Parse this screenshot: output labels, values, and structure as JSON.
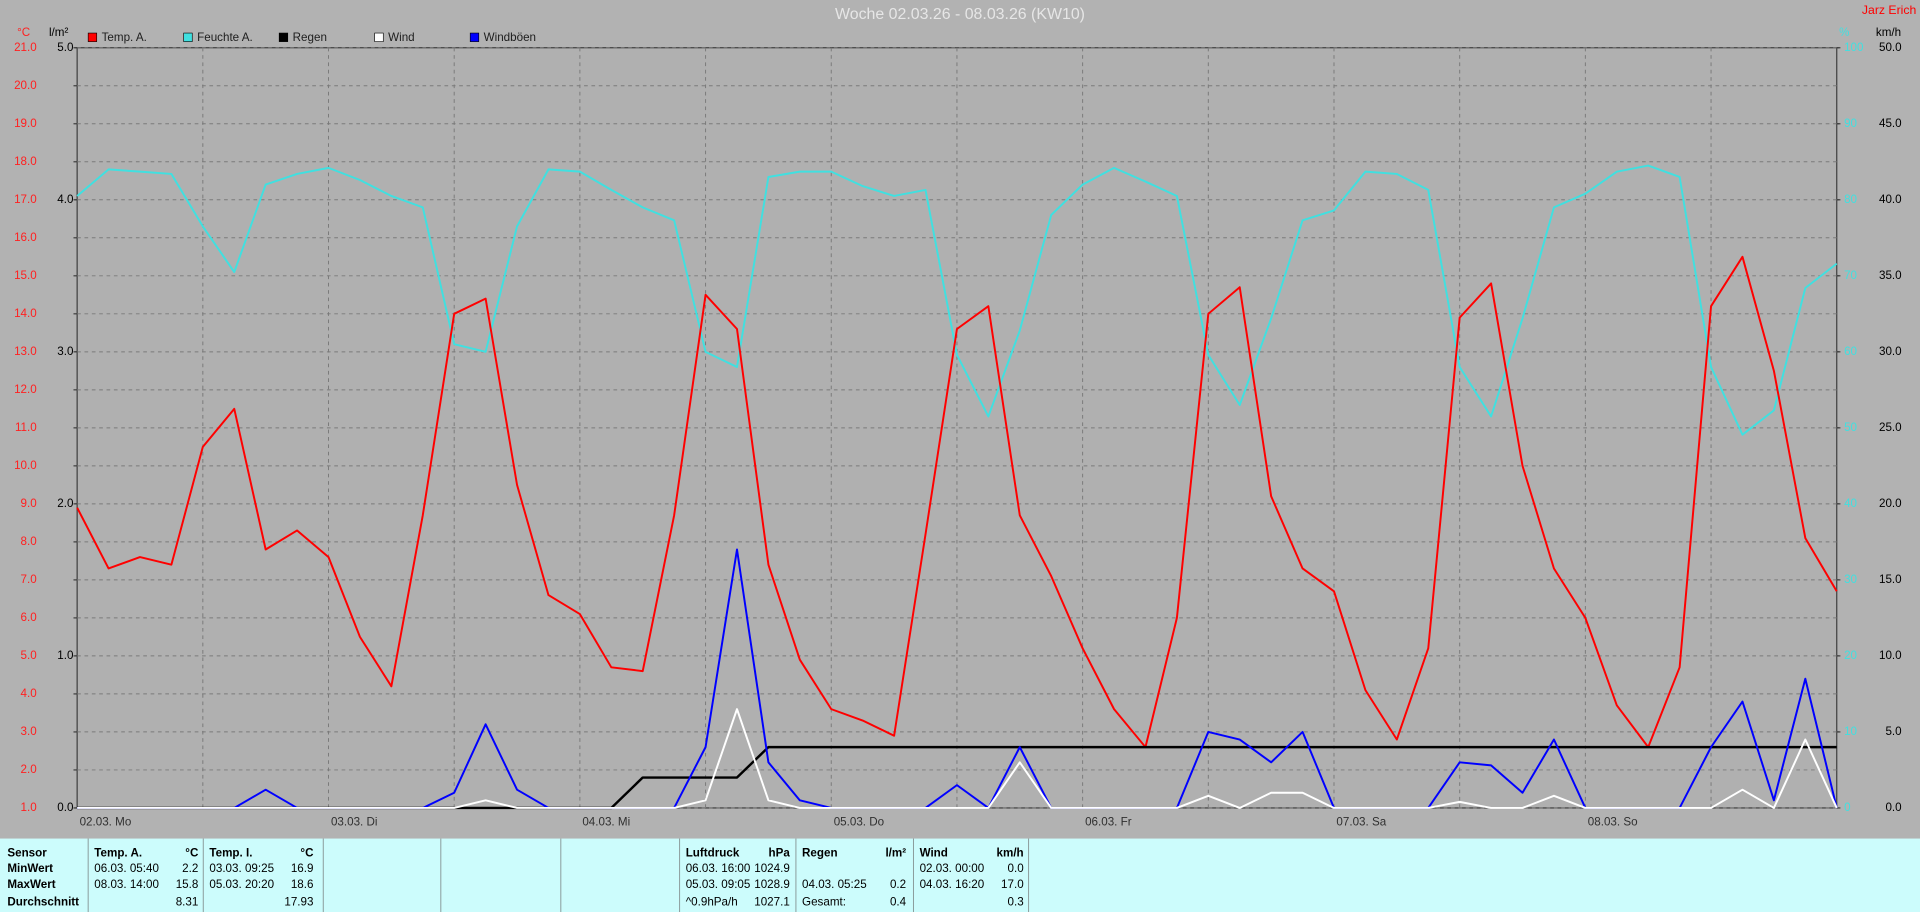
{
  "chart_data": {
    "type": "line",
    "title": "Woche 02.03.26 - 08.03.26 (KW10)",
    "author": "Jarz Erich",
    "ylabel": "°C",
    "y2label": "l/m²",
    "y3label": "%",
    "y4label": "km/h",
    "grid": true,
    "legend": "top-left",
    "categories": [
      "02.03. Mo",
      null,
      null,
      null,
      null,
      null,
      null,
      null,
      "03.03. Di",
      null,
      null,
      null,
      null,
      null,
      null,
      null,
      "04.03. Mi",
      null,
      null,
      null,
      null,
      null,
      null,
      null,
      "05.03. Do",
      null,
      null,
      null,
      null,
      null,
      null,
      null,
      "06.03. Fr",
      null,
      null,
      null,
      null,
      null,
      null,
      null,
      "07.03. Sa",
      null,
      null,
      null,
      null,
      null,
      null,
      null,
      "08.03. So",
      null,
      null,
      null,
      null,
      null,
      null,
      null,
      null
    ],
    "ylim": [
      1,
      21
    ],
    "yticks": [
      {
        "value": 1,
        "label": "1.0"
      },
      {
        "value": 2,
        "label": "2.0"
      },
      {
        "value": 3,
        "label": "3.0"
      },
      {
        "value": 4,
        "label": "4.0"
      },
      {
        "value": 5,
        "label": "5.0"
      },
      {
        "value": 6,
        "label": "6.0"
      },
      {
        "value": 7,
        "label": "7.0"
      },
      {
        "value": 8,
        "label": "8.0"
      },
      {
        "value": 9,
        "label": "9.0"
      },
      {
        "value": 10,
        "label": "10.0"
      },
      {
        "value": 11,
        "label": "11.0"
      },
      {
        "value": 12,
        "label": "12.0"
      },
      {
        "value": 13,
        "label": "13.0"
      },
      {
        "value": 14,
        "label": "14.0"
      },
      {
        "value": 15,
        "label": "15.0"
      },
      {
        "value": 16,
        "label": "16.0"
      },
      {
        "value": 17,
        "label": "17.0"
      },
      {
        "value": 18,
        "label": "18.0"
      },
      {
        "value": 19,
        "label": "19.0"
      },
      {
        "value": 20,
        "label": "20.0"
      },
      {
        "value": 21,
        "label": "21.0"
      }
    ],
    "y2lim": [
      0,
      5
    ],
    "y2ticks": [
      {
        "value": 0,
        "label": "0.0"
      },
      {
        "value": 1,
        "label": "1.0"
      },
      {
        "value": 2,
        "label": "2.0"
      },
      {
        "value": 3,
        "label": "3.0"
      },
      {
        "value": 4,
        "label": "4.0"
      },
      {
        "value": 5,
        "label": "5.0"
      }
    ],
    "y3lim": [
      0,
      100
    ],
    "y3ticks": [
      0,
      10,
      20,
      30,
      40,
      50,
      60,
      70,
      80,
      90,
      100
    ],
    "y4lim": [
      0,
      50
    ],
    "y4ticks": [
      {
        "value": 0,
        "label": "0.0"
      },
      {
        "value": 5,
        "label": "5.0"
      },
      {
        "value": 10,
        "label": "10.0"
      },
      {
        "value": 15,
        "label": "15.0"
      },
      {
        "value": 20,
        "label": "20.0"
      },
      {
        "value": 25,
        "label": "25.0"
      },
      {
        "value": 30,
        "label": "30.0"
      },
      {
        "value": 35,
        "label": "35.0"
      },
      {
        "value": 40,
        "label": "40.0"
      },
      {
        "value": 45,
        "label": "45.0"
      },
      {
        "value": 50,
        "label": "50.0"
      }
    ],
    "series": [
      {
        "name": "Temp. A.",
        "color": "#ff0000",
        "axis": "y",
        "values": [
          8.9,
          7.3,
          7.6,
          7.4,
          10.5,
          11.5,
          7.8,
          8.3,
          7.6,
          5.5,
          4.2,
          8.7,
          14.0,
          14.4,
          9.5,
          6.6,
          6.1,
          4.7,
          4.6,
          8.7,
          14.5,
          13.6,
          7.4,
          4.9,
          3.6,
          3.3,
          2.9,
          8.2,
          13.6,
          14.2,
          8.7,
          7.1,
          5.2,
          3.6,
          2.6,
          6.0,
          14.0,
          14.7,
          9.2,
          7.3,
          6.7,
          4.1,
          2.8,
          5.2,
          13.9,
          14.8,
          10.0,
          7.3,
          6.0,
          3.7,
          2.6,
          4.7,
          14.2,
          15.5,
          12.5,
          8.1,
          6.7
        ]
      },
      {
        "name": "Feuchte A.",
        "color": "#40e0e0",
        "axis": "y3",
        "values": [
          80.5,
          84,
          83.7,
          83.4,
          76.5,
          70.5,
          82,
          83.4,
          84.2,
          82.6,
          80.5,
          79,
          61,
          60,
          76.5,
          84,
          83.7,
          81.3,
          79,
          77.3,
          60,
          58,
          83,
          83.7,
          83.7,
          81.8,
          80.5,
          81.3,
          59.6,
          51.5,
          62.8,
          78,
          82,
          84.2,
          82.4,
          80.5,
          59.6,
          53,
          64.4,
          77.3,
          78.6,
          83.7,
          83.4,
          81.3,
          58,
          51.5,
          64.4,
          79,
          80.8,
          83.7,
          84.5,
          83,
          58,
          49.1,
          52.3,
          68.4,
          71.6
        ]
      },
      {
        "name": "Regen",
        "color": "#000000",
        "axis": "y2",
        "values": [
          0,
          0,
          0,
          0,
          0,
          0,
          0,
          0,
          0,
          0,
          0,
          0,
          0,
          0,
          0,
          0,
          0,
          0,
          0.2,
          0.2,
          0.2,
          0.2,
          0.4,
          0.4,
          0.4,
          0.4,
          0.4,
          0.4,
          0.4,
          0.4,
          0.4,
          0.4,
          0.4,
          0.4,
          0.4,
          0.4,
          0.4,
          0.4,
          0.4,
          0.4,
          0.4,
          0.4,
          0.4,
          0.4,
          0.4,
          0.4,
          0.4,
          0.4,
          0.4,
          0.4,
          0.4,
          0.4,
          0.4,
          0.4,
          0.4,
          0.4,
          0.4
        ]
      },
      {
        "name": "Wind",
        "color": "#ffffff",
        "axis": "y4",
        "values": [
          0,
          0,
          0,
          0,
          0,
          0,
          0,
          0,
          0,
          0,
          0,
          0,
          0,
          0.5,
          0,
          0,
          0,
          0,
          0,
          0,
          0.5,
          6.5,
          0.5,
          0,
          0,
          0,
          0,
          0,
          0,
          0,
          3,
          0,
          0,
          0,
          0,
          0,
          0.8,
          0,
          1,
          1,
          0,
          0,
          0,
          0,
          0.4,
          0,
          0,
          0.8,
          0,
          0,
          0,
          0,
          0,
          1.2,
          0,
          4.5,
          0
        ]
      },
      {
        "name": "Windböen",
        "color": "#0000ff",
        "axis": "y4",
        "values": [
          0,
          0,
          0,
          0,
          0,
          0,
          1.2,
          0,
          0,
          0,
          0,
          0,
          1,
          5.5,
          1.2,
          0,
          0,
          0,
          0,
          0,
          4,
          17,
          3,
          0.5,
          0,
          0,
          0,
          0,
          1.5,
          0,
          4,
          0,
          0,
          0,
          0,
          0,
          5,
          4.5,
          3,
          5,
          0,
          0,
          0,
          0,
          3,
          2.8,
          1,
          4.5,
          0,
          0,
          0,
          0,
          4,
          7,
          0.5,
          8.5,
          0
        ]
      }
    ]
  },
  "table": {
    "row_header": "Sensor",
    "row_labels": [
      "MinWert",
      "MaxWert",
      "Durchschnitt"
    ],
    "blocks": [
      {
        "title": "Temp. A.",
        "unit": "°C",
        "rows": [
          {
            "time": "06.03.  05:40",
            "value": "2.2"
          },
          {
            "time": "08.03.  14:00",
            "value": "15.8"
          },
          {
            "value": "8.31"
          }
        ]
      },
      {
        "title": "Temp. I.",
        "unit": "°C",
        "rows": [
          {
            "time": "03.03.  09:25",
            "value": "16.9"
          },
          {
            "time": "05.03.  20:20",
            "value": "18.6"
          },
          {
            "value": "17.93"
          }
        ]
      },
      {
        "title": "Luftdruck",
        "unit": "hPa",
        "rows": [
          {
            "time": "06.03.  16:00",
            "value": "1024.9"
          },
          {
            "time": "05.03.  09:05",
            "value": "1028.9"
          },
          {
            "time": "^0.9hPa/h",
            "value": "1027.1"
          }
        ]
      },
      {
        "title": "Regen",
        "unit": "l/m²",
        "rows": [
          null,
          {
            "time": "04.03.  05:25",
            "value": "0.2"
          },
          {
            "time": "Gesamt:",
            "value": "0.4"
          }
        ]
      },
      {
        "title": "Wind",
        "unit": "km/h",
        "rows": [
          {
            "time": "02.03.  00:00",
            "value": "0.0"
          },
          {
            "time": "04.03.  16:20",
            "value": "17.0"
          },
          {
            "value": "0.3"
          }
        ]
      }
    ]
  }
}
